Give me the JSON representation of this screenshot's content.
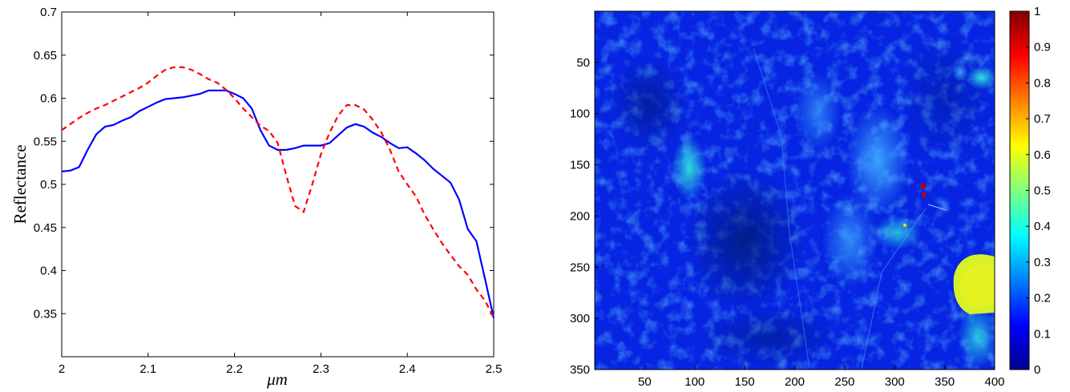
{
  "chart_data": [
    {
      "type": "line",
      "title": "",
      "xlabel": "μm",
      "ylabel": "Reflectance",
      "xlim": [
        2.0,
        2.5
      ],
      "ylim": [
        0.3,
        0.7
      ],
      "xticks": [
        "2",
        "2.1",
        "2.2",
        "2.3",
        "2.4",
        "2.5"
      ],
      "xtick_values": [
        2.0,
        2.1,
        2.2,
        2.3,
        2.4,
        2.5
      ],
      "yticks": [
        "0.35",
        "0.4",
        "0.45",
        "0.5",
        "0.55",
        "0.6",
        "0.65",
        "0.7"
      ],
      "ytick_values": [
        0.35,
        0.4,
        0.45,
        0.5,
        0.55,
        0.6,
        0.65,
        0.7
      ],
      "grid": false,
      "series": [
        {
          "color": "#0000ff",
          "style": "solid",
          "x": [
            2.0,
            2.01,
            2.02,
            2.03,
            2.04,
            2.05,
            2.06,
            2.07,
            2.08,
            2.09,
            2.1,
            2.11,
            2.12,
            2.13,
            2.14,
            2.15,
            2.16,
            2.17,
            2.18,
            2.19,
            2.2,
            2.21,
            2.22,
            2.23,
            2.24,
            2.25,
            2.26,
            2.27,
            2.28,
            2.29,
            2.3,
            2.31,
            2.32,
            2.33,
            2.34,
            2.35,
            2.36,
            2.37,
            2.38,
            2.39,
            2.4,
            2.41,
            2.42,
            2.43,
            2.44,
            2.45,
            2.46,
            2.47,
            2.48,
            2.49,
            2.5
          ],
          "y": [
            0.515,
            0.516,
            0.52,
            0.54,
            0.558,
            0.567,
            0.569,
            0.574,
            0.578,
            0.585,
            0.59,
            0.595,
            0.599,
            0.6,
            0.601,
            0.603,
            0.605,
            0.609,
            0.609,
            0.609,
            0.605,
            0.6,
            0.588,
            0.563,
            0.545,
            0.54,
            0.54,
            0.542,
            0.545,
            0.545,
            0.545,
            0.548,
            0.557,
            0.566,
            0.57,
            0.567,
            0.56,
            0.555,
            0.548,
            0.542,
            0.543,
            0.536,
            0.528,
            0.518,
            0.51,
            0.502,
            0.482,
            0.448,
            0.434,
            0.39,
            0.345
          ]
        },
        {
          "color": "#ff0000",
          "style": "dashed",
          "x": [
            2.0,
            2.01,
            2.02,
            2.03,
            2.04,
            2.05,
            2.06,
            2.07,
            2.08,
            2.09,
            2.1,
            2.11,
            2.12,
            2.13,
            2.14,
            2.15,
            2.16,
            2.17,
            2.18,
            2.19,
            2.2,
            2.21,
            2.22,
            2.23,
            2.24,
            2.25,
            2.26,
            2.27,
            2.28,
            2.29,
            2.3,
            2.31,
            2.32,
            2.33,
            2.34,
            2.35,
            2.36,
            2.37,
            2.38,
            2.39,
            2.4,
            2.41,
            2.42,
            2.43,
            2.44,
            2.45,
            2.46,
            2.47,
            2.48,
            2.49,
            2.5
          ],
          "y": [
            0.563,
            0.57,
            0.577,
            0.583,
            0.588,
            0.592,
            0.597,
            0.602,
            0.607,
            0.612,
            0.618,
            0.626,
            0.633,
            0.636,
            0.636,
            0.633,
            0.628,
            0.622,
            0.618,
            0.61,
            0.6,
            0.588,
            0.578,
            0.568,
            0.562,
            0.548,
            0.51,
            0.475,
            0.468,
            0.5,
            0.535,
            0.56,
            0.58,
            0.592,
            0.592,
            0.587,
            0.575,
            0.56,
            0.54,
            0.515,
            0.5,
            0.486,
            0.465,
            0.448,
            0.432,
            0.418,
            0.405,
            0.395,
            0.378,
            0.365,
            0.345
          ]
        }
      ]
    },
    {
      "type": "heatmap",
      "title": "",
      "xlabel": "",
      "ylabel": "",
      "xlim": [
        0,
        400
      ],
      "ylim": [
        0,
        350
      ],
      "y_reversed": true,
      "xticks": [
        "50",
        "100",
        "150",
        "200",
        "250",
        "300",
        "350",
        "400"
      ],
      "xtick_values": [
        50,
        100,
        150,
        200,
        250,
        300,
        350,
        400
      ],
      "yticks": [
        "50",
        "100",
        "150",
        "200",
        "250",
        "300",
        "350"
      ],
      "ytick_values": [
        50,
        100,
        150,
        200,
        250,
        300,
        350
      ],
      "colormap": "jet",
      "colorbar": {
        "range": [
          0,
          1
        ],
        "ticks": [
          "0",
          "0.1",
          "0.2",
          "0.3",
          "0.4",
          "0.5",
          "0.6",
          "0.7",
          "0.8",
          "0.9",
          "1"
        ],
        "tick_values": [
          0,
          0.1,
          0.2,
          0.3,
          0.4,
          0.5,
          0.6,
          0.7,
          0.8,
          0.9,
          1.0
        ]
      }
    }
  ]
}
